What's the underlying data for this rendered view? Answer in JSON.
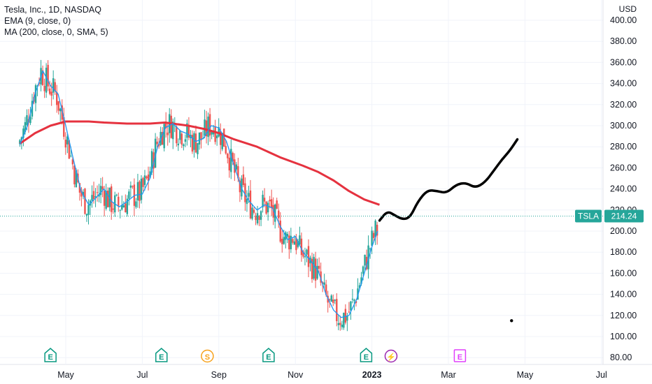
{
  "legend": {
    "symbol": "Tesla, Inc., 1D, NASDAQ",
    "ema": "EMA (9, close, 0)",
    "ma": "MA (200, close, 0, SMA, 5)"
  },
  "price_scale": {
    "currency": "USD",
    "ticks": [
      "80.00",
      "100.00",
      "120.00",
      "140.00",
      "160.00",
      "180.00",
      "200.00",
      "220.00",
      "240.00",
      "260.00",
      "280.00",
      "300.00",
      "320.00",
      "340.00",
      "360.00",
      "380.00",
      "400.00"
    ]
  },
  "time_axis": {
    "labels": [
      "May",
      "Jul",
      "Sep",
      "Nov",
      "2023",
      "Mar",
      "May",
      "Jul"
    ],
    "bold_label": "2023"
  },
  "last_price": {
    "ticker": "TSLA",
    "value": "214.24",
    "color": "#26a69a"
  },
  "events": [
    {
      "letter": "E",
      "type": "earnings"
    },
    {
      "letter": "E",
      "type": "earnings"
    },
    {
      "letter": "S",
      "type": "split"
    },
    {
      "letter": "E",
      "type": "earnings"
    },
    {
      "letter": "E",
      "type": "earnings"
    },
    {
      "letter": "⚡",
      "type": "dividend-flash"
    },
    {
      "letter": "E",
      "type": "earnings-future"
    }
  ],
  "colors": {
    "up": "#26a69a",
    "down": "#ef5350",
    "ema": "#2196f3",
    "ma": "#e5323f",
    "drawing": "#000000",
    "earnings": "#089981",
    "split": "#f7a21c",
    "flash": "#9c27b0",
    "future_earnings": "#e040fb"
  },
  "chart_data": {
    "type": "line",
    "title": "Tesla, Inc., 1D, NASDAQ",
    "ylabel": "USD",
    "ylim": [
      75,
      410
    ],
    "x_unit": "approximate calendar month (2022–2023)",
    "series": [
      {
        "name": "EMA (9, close, 0)",
        "points": [
          [
            3.8,
            282
          ],
          [
            4.0,
            300
          ],
          [
            4.2,
            330
          ],
          [
            4.4,
            352
          ],
          [
            4.6,
            338
          ],
          [
            4.8,
            330
          ],
          [
            5.0,
            300
          ],
          [
            5.2,
            268
          ],
          [
            5.4,
            238
          ],
          [
            5.6,
            225
          ],
          [
            5.8,
            232
          ],
          [
            6.0,
            240
          ],
          [
            6.2,
            228
          ],
          [
            6.4,
            223
          ],
          [
            6.6,
            228
          ],
          [
            6.8,
            234
          ],
          [
            7.0,
            235
          ],
          [
            7.2,
            250
          ],
          [
            7.4,
            280
          ],
          [
            7.6,
            298
          ],
          [
            7.8,
            302
          ],
          [
            8.0,
            295
          ],
          [
            8.2,
            292
          ],
          [
            8.4,
            285
          ],
          [
            8.6,
            288
          ],
          [
            8.8,
            300
          ],
          [
            9.0,
            298
          ],
          [
            9.2,
            285
          ],
          [
            9.4,
            262
          ],
          [
            9.6,
            240
          ],
          [
            9.8,
            228
          ],
          [
            10.0,
            220
          ],
          [
            10.2,
            225
          ],
          [
            10.4,
            222
          ],
          [
            10.6,
            205
          ],
          [
            10.8,
            192
          ],
          [
            11.0,
            195
          ],
          [
            11.2,
            180
          ],
          [
            11.4,
            172
          ],
          [
            11.6,
            162
          ],
          [
            11.8,
            140
          ],
          [
            12.0,
            125
          ],
          [
            12.2,
            118
          ],
          [
            12.4,
            120
          ],
          [
            12.6,
            135
          ],
          [
            12.8,
            160
          ],
          [
            13.0,
            185
          ],
          [
            13.15,
            200
          ]
        ]
      },
      {
        "name": "MA (200, close, 0, SMA, 5)",
        "points": [
          [
            3.8,
            283
          ],
          [
            4.2,
            293
          ],
          [
            4.6,
            300
          ],
          [
            5.0,
            304
          ],
          [
            5.6,
            304
          ],
          [
            6.0,
            303
          ],
          [
            6.6,
            302
          ],
          [
            7.2,
            302
          ],
          [
            7.6,
            303
          ],
          [
            8.2,
            300
          ],
          [
            8.6,
            297
          ],
          [
            9.0,
            293
          ],
          [
            9.4,
            287
          ],
          [
            10.0,
            280
          ],
          [
            10.6,
            270
          ],
          [
            11.2,
            262
          ],
          [
            11.6,
            256
          ],
          [
            12.0,
            248
          ],
          [
            12.4,
            238
          ],
          [
            12.8,
            230
          ],
          [
            13.2,
            225
          ]
        ]
      },
      {
        "name": "",
        "points": [
          [
            13.2,
            210
          ],
          [
            13.4,
            219
          ],
          [
            13.6,
            215
          ],
          [
            13.8,
            211
          ],
          [
            14.0,
            213
          ],
          [
            14.2,
            228
          ],
          [
            14.45,
            239
          ],
          [
            14.7,
            238
          ],
          [
            14.95,
            236
          ],
          [
            15.2,
            244
          ],
          [
            15.45,
            246
          ],
          [
            15.7,
            241
          ],
          [
            15.95,
            246
          ],
          [
            16.2,
            258
          ],
          [
            16.4,
            268
          ],
          [
            16.6,
            276
          ],
          [
            16.8,
            287
          ]
        ]
      }
    ],
    "last_value": 214.24,
    "annotation_point": [
      16.65,
      115
    ]
  }
}
